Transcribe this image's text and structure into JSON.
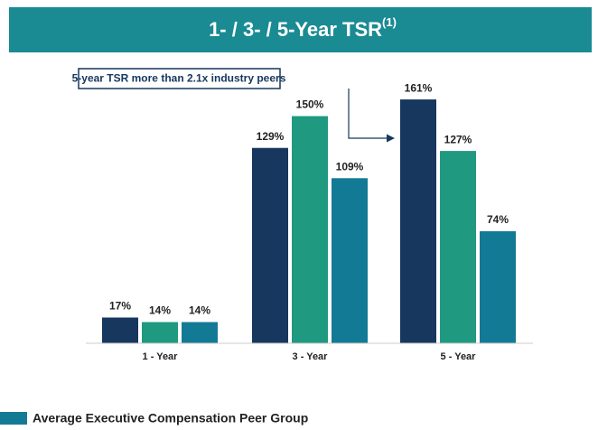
{
  "chart_data": {
    "type": "bar",
    "title": "1- / 3- / 5-Year TSR",
    "title_note": "(1)",
    "annotation": "5-year TSR more than 2.1x industry peers",
    "categories": [
      "1 - Year",
      "3 - Year",
      "5 - Year"
    ],
    "series": [
      {
        "color": "#17375e",
        "values": [
          17,
          129,
          161
        ],
        "value_labels": [
          "17%",
          "129%",
          "161%"
        ]
      },
      {
        "color": "#1f9a80",
        "values": [
          14,
          150,
          127
        ],
        "value_labels": [
          "14%",
          "150%",
          "127%"
        ]
      },
      {
        "name": "Average Executive Compensation Peer Group",
        "color": "#137a96",
        "values": [
          14,
          109,
          74
        ],
        "value_labels": [
          "14%",
          "109%",
          "74%"
        ]
      }
    ],
    "ylim": [
      0,
      170
    ]
  }
}
